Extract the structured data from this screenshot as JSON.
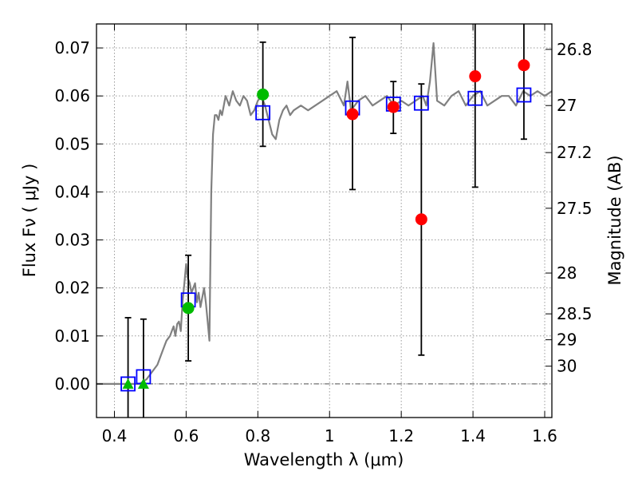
{
  "chart_data": {
    "type": "scatter",
    "title": "",
    "xlabel": "Wavelength  λ (μm)",
    "ylabel": "Flux  Fν  ( μJy )",
    "ylabel_right": "Magnitude (AB)",
    "xlim": [
      0.35,
      1.62
    ],
    "ylim": [
      -0.007,
      0.075
    ],
    "grid": true,
    "xticks": [
      0.4,
      0.6,
      0.8,
      1.0,
      1.2,
      1.4,
      1.6
    ],
    "xtick_labels": [
      "0.4",
      "0.6",
      "0.8",
      "1",
      "1.2",
      "1.4",
      "1.6"
    ],
    "yticks": [
      0.0,
      0.01,
      0.02,
      0.03,
      0.04,
      0.05,
      0.06,
      0.07
    ],
    "ytick_labels": [
      "0.00",
      "0.01",
      "0.02",
      "0.03",
      "0.04",
      "0.05",
      "0.06",
      "0.07"
    ],
    "right_ticks": [
      {
        "label": "26.8",
        "flux": 0.0697
      },
      {
        "label": "27",
        "flux": 0.058
      },
      {
        "label": "27.2",
        "flux": 0.0482
      },
      {
        "label": "27.5",
        "flux": 0.0366
      },
      {
        "label": "28",
        "flux": 0.0231
      },
      {
        "label": "28.5",
        "flux": 0.0146
      },
      {
        "label": "29",
        "flux": 0.0092
      },
      {
        "label": "30",
        "flux": 0.0037
      }
    ],
    "colors": {
      "model": "#808080",
      "model_photometry": "#0000ff",
      "detections": "#ff0000",
      "optical_points": "#00bb00",
      "errorbars": "#000000",
      "grid": "#9a9a9a"
    },
    "model_spectrum": {
      "x": [
        0.35,
        0.47,
        0.48,
        0.49,
        0.5,
        0.51,
        0.52,
        0.53,
        0.54,
        0.545,
        0.55,
        0.555,
        0.56,
        0.565,
        0.57,
        0.575,
        0.58,
        0.585,
        0.59,
        0.595,
        0.6,
        0.605,
        0.61,
        0.615,
        0.62,
        0.625,
        0.63,
        0.635,
        0.64,
        0.645,
        0.65,
        0.655,
        0.66,
        0.665,
        0.67,
        0.675,
        0.68,
        0.685,
        0.69,
        0.695,
        0.7,
        0.71,
        0.72,
        0.73,
        0.74,
        0.75,
        0.76,
        0.77,
        0.78,
        0.79,
        0.8,
        0.81,
        0.82,
        0.83,
        0.84,
        0.85,
        0.86,
        0.87,
        0.88,
        0.89,
        0.9,
        0.92,
        0.94,
        0.96,
        0.98,
        1.0,
        1.02,
        1.04,
        1.05,
        1.06,
        1.08,
        1.1,
        1.12,
        1.14,
        1.16,
        1.18,
        1.2,
        1.22,
        1.24,
        1.26,
        1.27,
        1.28,
        1.29,
        1.3,
        1.32,
        1.34,
        1.36,
        1.38,
        1.4,
        1.42,
        1.44,
        1.46,
        1.48,
        1.5,
        1.52,
        1.54,
        1.56,
        1.58,
        1.6,
        1.62
      ],
      "y": [
        0.0,
        0.0,
        0.0005,
        0.001,
        0.002,
        0.003,
        0.004,
        0.006,
        0.008,
        0.009,
        0.0095,
        0.01,
        0.011,
        0.012,
        0.01,
        0.0125,
        0.013,
        0.011,
        0.017,
        0.021,
        0.025,
        0.022,
        0.021,
        0.019,
        0.02,
        0.021,
        0.017,
        0.019,
        0.016,
        0.018,
        0.02,
        0.017,
        0.013,
        0.009,
        0.04,
        0.052,
        0.056,
        0.056,
        0.055,
        0.057,
        0.056,
        0.06,
        0.058,
        0.061,
        0.059,
        0.058,
        0.06,
        0.059,
        0.056,
        0.057,
        0.059,
        0.06,
        0.058,
        0.055,
        0.052,
        0.051,
        0.055,
        0.057,
        0.058,
        0.056,
        0.057,
        0.058,
        0.057,
        0.058,
        0.059,
        0.06,
        0.061,
        0.058,
        0.063,
        0.057,
        0.059,
        0.06,
        0.058,
        0.059,
        0.06,
        0.058,
        0.059,
        0.058,
        0.059,
        0.06,
        0.058,
        0.063,
        0.071,
        0.059,
        0.058,
        0.06,
        0.061,
        0.058,
        0.06,
        0.061,
        0.058,
        0.059,
        0.06,
        0.06,
        0.058,
        0.061,
        0.06,
        0.061,
        0.06,
        0.061
      ]
    },
    "series": [
      {
        "name": "",
        "marker": "square",
        "x": [
          0.438,
          0.481,
          0.606,
          0.814,
          1.064,
          1.178,
          1.256,
          1.406,
          1.542
        ],
        "y": [
          0.0,
          0.0015,
          0.0175,
          0.0565,
          0.0575,
          0.0583,
          0.0585,
          0.0595,
          0.0602
        ]
      },
      {
        "name": "",
        "marker": "circle",
        "x": [
          1.064,
          1.178,
          1.256,
          1.406,
          1.542
        ],
        "y": [
          0.0562,
          0.0577,
          0.0343,
          0.0641,
          0.0664
        ],
        "yerr_low": [
          0.0405,
          0.0522,
          0.006,
          0.041,
          0.051
        ],
        "yerr_high": [
          0.0722,
          0.063,
          0.0625,
          0.075,
          0.075
        ]
      },
      {
        "name": "",
        "marker": "triangle",
        "x": [
          0.438,
          0.481
        ],
        "y": [
          0.0,
          0.0
        ],
        "yerr_low": [
          -0.007,
          -0.007
        ],
        "yerr_high": [
          0.0138,
          0.0135
        ]
      },
      {
        "name": "",
        "marker": "circle",
        "x": [
          0.606,
          0.814
        ],
        "y": [
          0.0158,
          0.0603
        ],
        "yerr_low": [
          0.0048,
          0.0495
        ],
        "yerr_high": [
          0.0268,
          0.0712
        ]
      }
    ]
  }
}
